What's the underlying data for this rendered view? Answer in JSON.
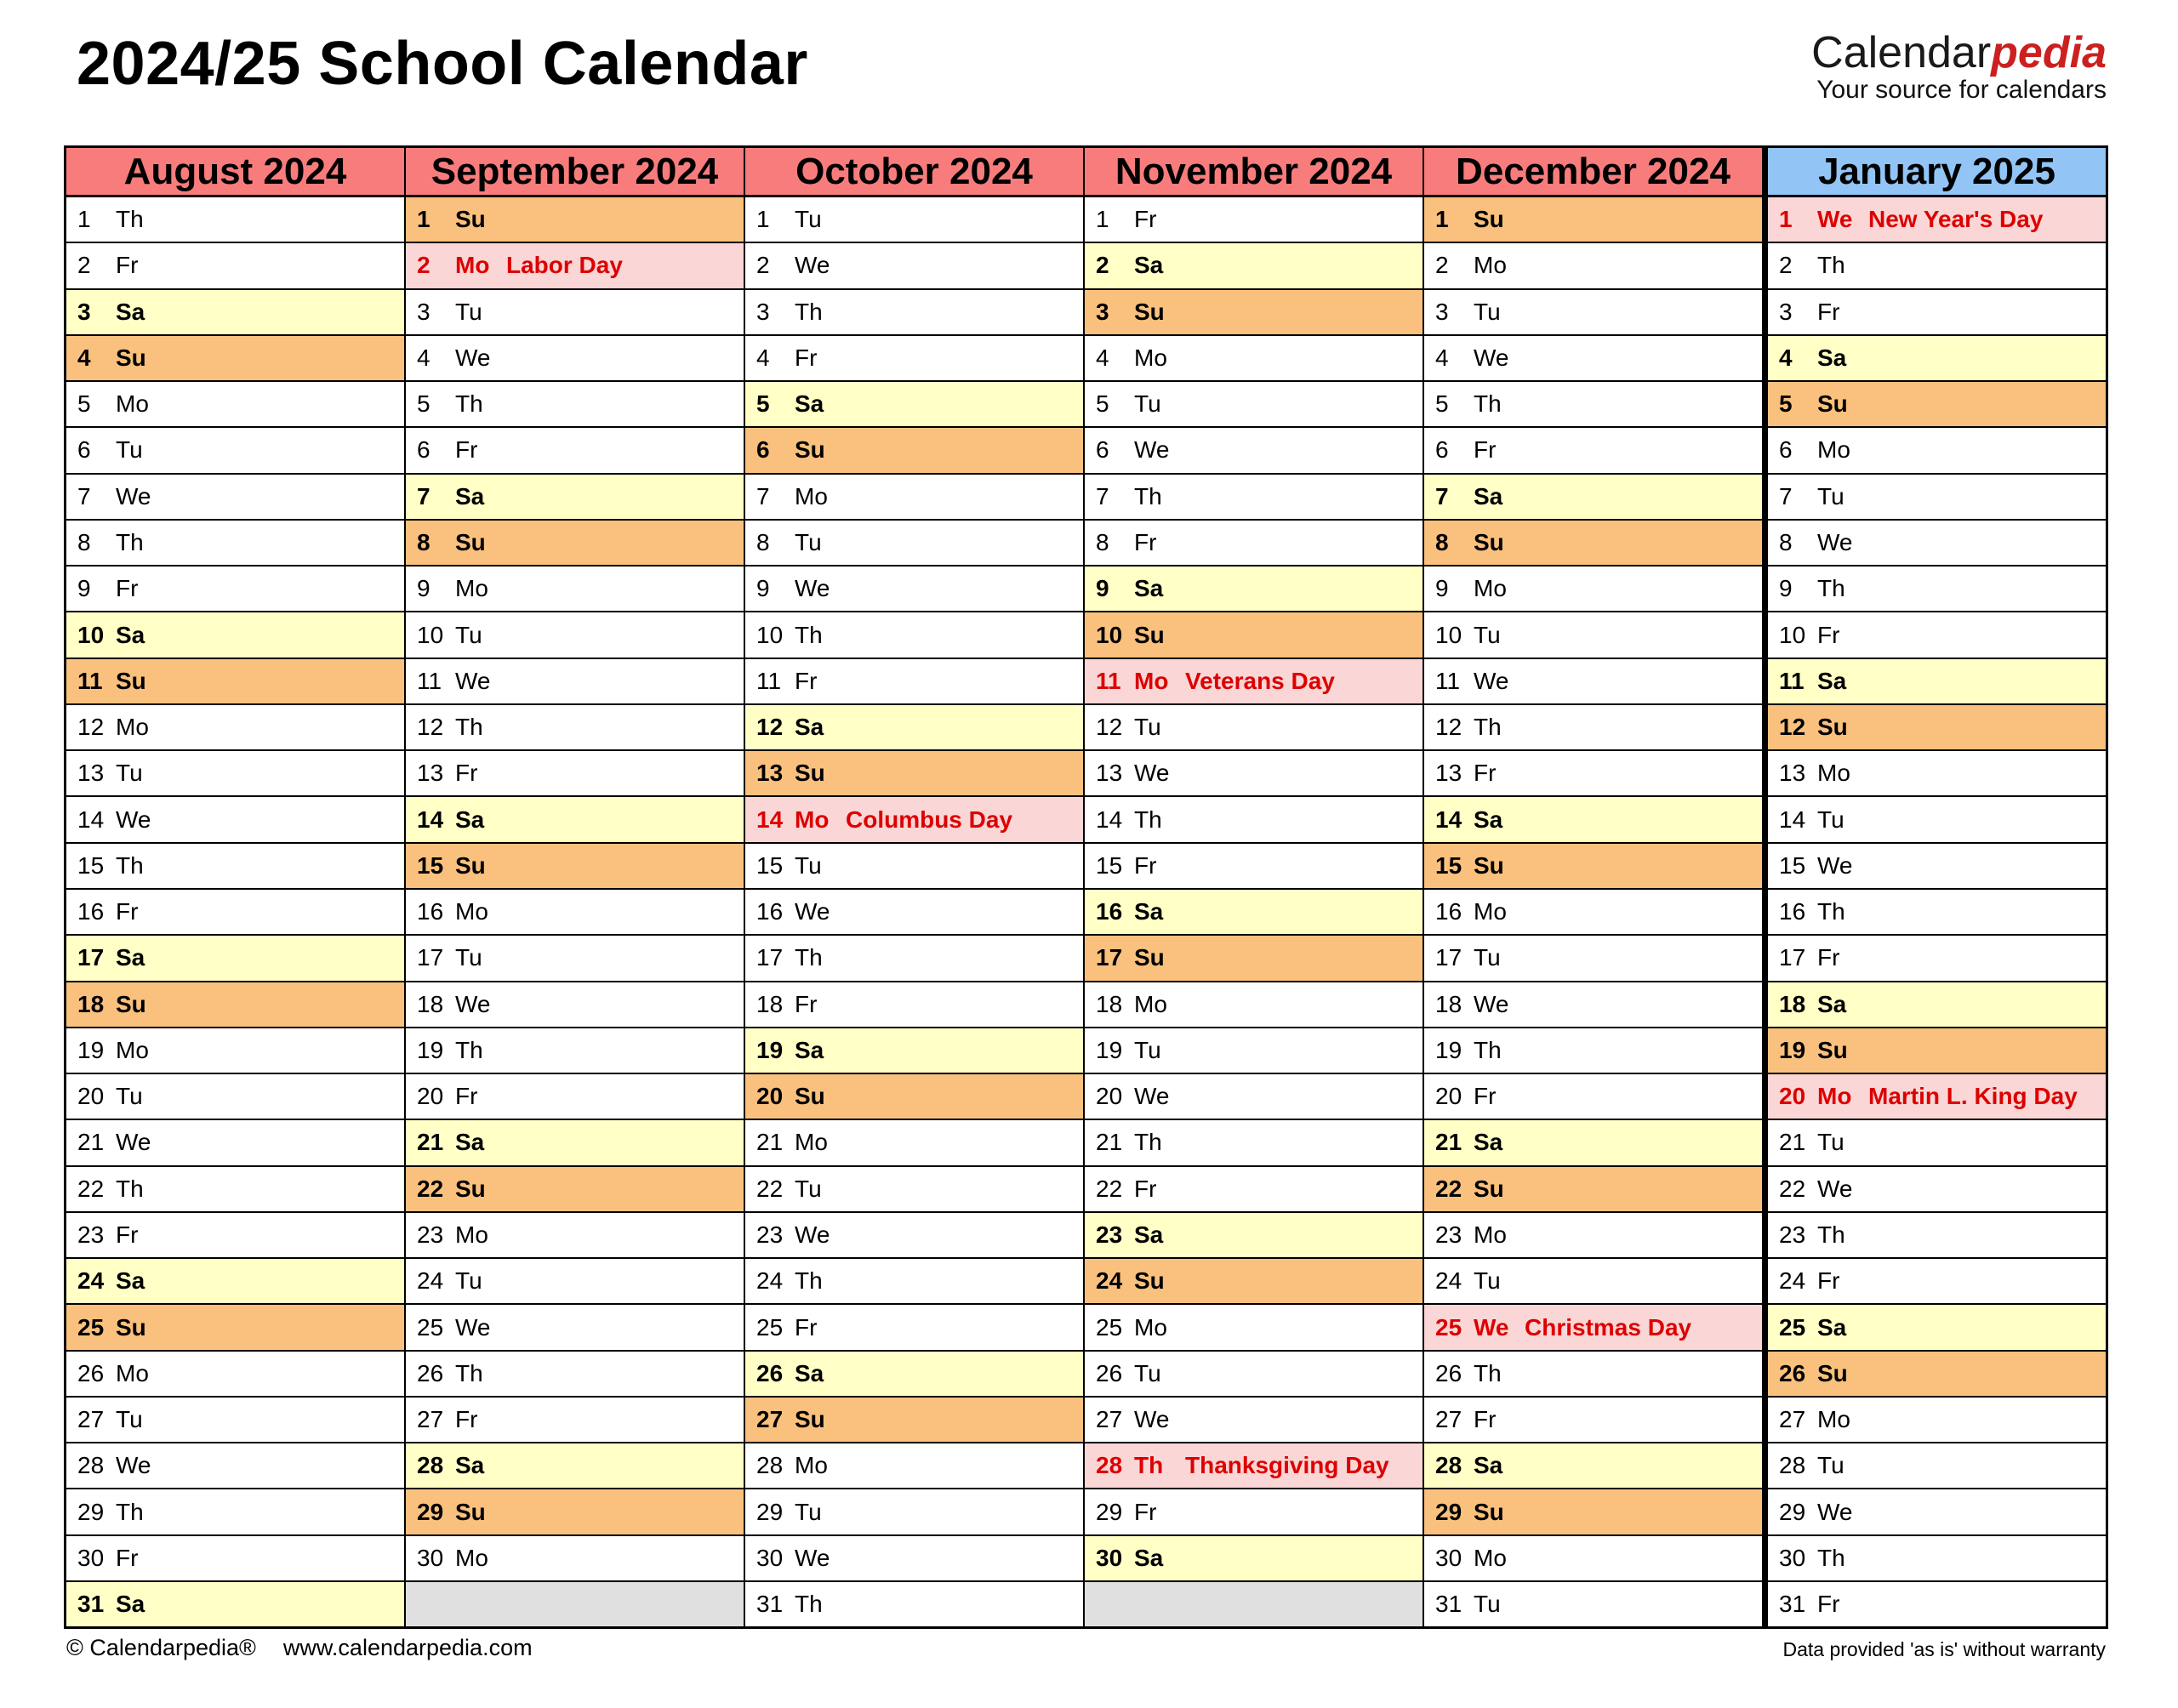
{
  "page": {
    "title": "2024/25 School Calendar",
    "logo": {
      "black": "Calendar",
      "red": "pedia",
      "tagline": "Your source for calendars"
    },
    "footer": {
      "copyright": "© Calendarpedia®",
      "website": "www.calendarpedia.com",
      "disclaimer": "Data provided 'as is' without warranty"
    }
  },
  "colors": {
    "month_header_bg": "#f87c7c",
    "current_month_header_bg": "#92c5f6",
    "saturday_bg": "#ffffc6",
    "sunday_bg": "#fac17e",
    "holiday_bg": "#fad6d6",
    "holiday_text": "#dd0000",
    "empty_cell_bg": "#e0e0e0"
  },
  "calendar": {
    "rows": 31,
    "months": [
      {
        "name": "August 2024",
        "highlight": false,
        "days": [
          {
            "d": 1,
            "w": "Th"
          },
          {
            "d": 2,
            "w": "Fr"
          },
          {
            "d": 3,
            "w": "Sa"
          },
          {
            "d": 4,
            "w": "Su"
          },
          {
            "d": 5,
            "w": "Mo"
          },
          {
            "d": 6,
            "w": "Tu"
          },
          {
            "d": 7,
            "w": "We"
          },
          {
            "d": 8,
            "w": "Th"
          },
          {
            "d": 9,
            "w": "Fr"
          },
          {
            "d": 10,
            "w": "Sa"
          },
          {
            "d": 11,
            "w": "Su"
          },
          {
            "d": 12,
            "w": "Mo"
          },
          {
            "d": 13,
            "w": "Tu"
          },
          {
            "d": 14,
            "w": "We"
          },
          {
            "d": 15,
            "w": "Th"
          },
          {
            "d": 16,
            "w": "Fr"
          },
          {
            "d": 17,
            "w": "Sa"
          },
          {
            "d": 18,
            "w": "Su"
          },
          {
            "d": 19,
            "w": "Mo"
          },
          {
            "d": 20,
            "w": "Tu"
          },
          {
            "d": 21,
            "w": "We"
          },
          {
            "d": 22,
            "w": "Th"
          },
          {
            "d": 23,
            "w": "Fr"
          },
          {
            "d": 24,
            "w": "Sa"
          },
          {
            "d": 25,
            "w": "Su"
          },
          {
            "d": 26,
            "w": "Mo"
          },
          {
            "d": 27,
            "w": "Tu"
          },
          {
            "d": 28,
            "w": "We"
          },
          {
            "d": 29,
            "w": "Th"
          },
          {
            "d": 30,
            "w": "Fr"
          },
          {
            "d": 31,
            "w": "Sa"
          }
        ]
      },
      {
        "name": "September 2024",
        "highlight": false,
        "days": [
          {
            "d": 1,
            "w": "Su"
          },
          {
            "d": 2,
            "w": "Mo",
            "h": "Labor Day"
          },
          {
            "d": 3,
            "w": "Tu"
          },
          {
            "d": 4,
            "w": "We"
          },
          {
            "d": 5,
            "w": "Th"
          },
          {
            "d": 6,
            "w": "Fr"
          },
          {
            "d": 7,
            "w": "Sa"
          },
          {
            "d": 8,
            "w": "Su"
          },
          {
            "d": 9,
            "w": "Mo"
          },
          {
            "d": 10,
            "w": "Tu"
          },
          {
            "d": 11,
            "w": "We"
          },
          {
            "d": 12,
            "w": "Th"
          },
          {
            "d": 13,
            "w": "Fr"
          },
          {
            "d": 14,
            "w": "Sa"
          },
          {
            "d": 15,
            "w": "Su"
          },
          {
            "d": 16,
            "w": "Mo"
          },
          {
            "d": 17,
            "w": "Tu"
          },
          {
            "d": 18,
            "w": "We"
          },
          {
            "d": 19,
            "w": "Th"
          },
          {
            "d": 20,
            "w": "Fr"
          },
          {
            "d": 21,
            "w": "Sa"
          },
          {
            "d": 22,
            "w": "Su"
          },
          {
            "d": 23,
            "w": "Mo"
          },
          {
            "d": 24,
            "w": "Tu"
          },
          {
            "d": 25,
            "w": "We"
          },
          {
            "d": 26,
            "w": "Th"
          },
          {
            "d": 27,
            "w": "Fr"
          },
          {
            "d": 28,
            "w": "Sa"
          },
          {
            "d": 29,
            "w": "Su"
          },
          {
            "d": 30,
            "w": "Mo"
          }
        ]
      },
      {
        "name": "October 2024",
        "highlight": false,
        "days": [
          {
            "d": 1,
            "w": "Tu"
          },
          {
            "d": 2,
            "w": "We"
          },
          {
            "d": 3,
            "w": "Th"
          },
          {
            "d": 4,
            "w": "Fr"
          },
          {
            "d": 5,
            "w": "Sa"
          },
          {
            "d": 6,
            "w": "Su"
          },
          {
            "d": 7,
            "w": "Mo"
          },
          {
            "d": 8,
            "w": "Tu"
          },
          {
            "d": 9,
            "w": "We"
          },
          {
            "d": 10,
            "w": "Th"
          },
          {
            "d": 11,
            "w": "Fr"
          },
          {
            "d": 12,
            "w": "Sa"
          },
          {
            "d": 13,
            "w": "Su"
          },
          {
            "d": 14,
            "w": "Mo",
            "h": "Columbus Day"
          },
          {
            "d": 15,
            "w": "Tu"
          },
          {
            "d": 16,
            "w": "We"
          },
          {
            "d": 17,
            "w": "Th"
          },
          {
            "d": 18,
            "w": "Fr"
          },
          {
            "d": 19,
            "w": "Sa"
          },
          {
            "d": 20,
            "w": "Su"
          },
          {
            "d": 21,
            "w": "Mo"
          },
          {
            "d": 22,
            "w": "Tu"
          },
          {
            "d": 23,
            "w": "We"
          },
          {
            "d": 24,
            "w": "Th"
          },
          {
            "d": 25,
            "w": "Fr"
          },
          {
            "d": 26,
            "w": "Sa"
          },
          {
            "d": 27,
            "w": "Su"
          },
          {
            "d": 28,
            "w": "Mo"
          },
          {
            "d": 29,
            "w": "Tu"
          },
          {
            "d": 30,
            "w": "We"
          },
          {
            "d": 31,
            "w": "Th"
          }
        ]
      },
      {
        "name": "November 2024",
        "highlight": false,
        "days": [
          {
            "d": 1,
            "w": "Fr"
          },
          {
            "d": 2,
            "w": "Sa"
          },
          {
            "d": 3,
            "w": "Su"
          },
          {
            "d": 4,
            "w": "Mo"
          },
          {
            "d": 5,
            "w": "Tu"
          },
          {
            "d": 6,
            "w": "We"
          },
          {
            "d": 7,
            "w": "Th"
          },
          {
            "d": 8,
            "w": "Fr"
          },
          {
            "d": 9,
            "w": "Sa"
          },
          {
            "d": 10,
            "w": "Su"
          },
          {
            "d": 11,
            "w": "Mo",
            "h": "Veterans Day"
          },
          {
            "d": 12,
            "w": "Tu"
          },
          {
            "d": 13,
            "w": "We"
          },
          {
            "d": 14,
            "w": "Th"
          },
          {
            "d": 15,
            "w": "Fr"
          },
          {
            "d": 16,
            "w": "Sa"
          },
          {
            "d": 17,
            "w": "Su"
          },
          {
            "d": 18,
            "w": "Mo"
          },
          {
            "d": 19,
            "w": "Tu"
          },
          {
            "d": 20,
            "w": "We"
          },
          {
            "d": 21,
            "w": "Th"
          },
          {
            "d": 22,
            "w": "Fr"
          },
          {
            "d": 23,
            "w": "Sa"
          },
          {
            "d": 24,
            "w": "Su"
          },
          {
            "d": 25,
            "w": "Mo"
          },
          {
            "d": 26,
            "w": "Tu"
          },
          {
            "d": 27,
            "w": "We"
          },
          {
            "d": 28,
            "w": "Th",
            "h": "Thanksgiving Day"
          },
          {
            "d": 29,
            "w": "Fr"
          },
          {
            "d": 30,
            "w": "Sa"
          }
        ]
      },
      {
        "name": "December 2024",
        "highlight": false,
        "days": [
          {
            "d": 1,
            "w": "Su"
          },
          {
            "d": 2,
            "w": "Mo"
          },
          {
            "d": 3,
            "w": "Tu"
          },
          {
            "d": 4,
            "w": "We"
          },
          {
            "d": 5,
            "w": "Th"
          },
          {
            "d": 6,
            "w": "Fr"
          },
          {
            "d": 7,
            "w": "Sa"
          },
          {
            "d": 8,
            "w": "Su"
          },
          {
            "d": 9,
            "w": "Mo"
          },
          {
            "d": 10,
            "w": "Tu"
          },
          {
            "d": 11,
            "w": "We"
          },
          {
            "d": 12,
            "w": "Th"
          },
          {
            "d": 13,
            "w": "Fr"
          },
          {
            "d": 14,
            "w": "Sa"
          },
          {
            "d": 15,
            "w": "Su"
          },
          {
            "d": 16,
            "w": "Mo"
          },
          {
            "d": 17,
            "w": "Tu"
          },
          {
            "d": 18,
            "w": "We"
          },
          {
            "d": 19,
            "w": "Th"
          },
          {
            "d": 20,
            "w": "Fr"
          },
          {
            "d": 21,
            "w": "Sa"
          },
          {
            "d": 22,
            "w": "Su"
          },
          {
            "d": 23,
            "w": "Mo"
          },
          {
            "d": 24,
            "w": "Tu"
          },
          {
            "d": 25,
            "w": "We",
            "h": "Christmas Day"
          },
          {
            "d": 26,
            "w": "Th"
          },
          {
            "d": 27,
            "w": "Fr"
          },
          {
            "d": 28,
            "w": "Sa"
          },
          {
            "d": 29,
            "w": "Su"
          },
          {
            "d": 30,
            "w": "Mo"
          },
          {
            "d": 31,
            "w": "Tu"
          }
        ]
      },
      {
        "name": "January 2025",
        "highlight": true,
        "days": [
          {
            "d": 1,
            "w": "We",
            "h": "New Year's Day"
          },
          {
            "d": 2,
            "w": "Th"
          },
          {
            "d": 3,
            "w": "Fr"
          },
          {
            "d": 4,
            "w": "Sa"
          },
          {
            "d": 5,
            "w": "Su"
          },
          {
            "d": 6,
            "w": "Mo"
          },
          {
            "d": 7,
            "w": "Tu"
          },
          {
            "d": 8,
            "w": "We"
          },
          {
            "d": 9,
            "w": "Th"
          },
          {
            "d": 10,
            "w": "Fr"
          },
          {
            "d": 11,
            "w": "Sa"
          },
          {
            "d": 12,
            "w": "Su"
          },
          {
            "d": 13,
            "w": "Mo"
          },
          {
            "d": 14,
            "w": "Tu"
          },
          {
            "d": 15,
            "w": "We"
          },
          {
            "d": 16,
            "w": "Th"
          },
          {
            "d": 17,
            "w": "Fr"
          },
          {
            "d": 18,
            "w": "Sa"
          },
          {
            "d": 19,
            "w": "Su"
          },
          {
            "d": 20,
            "w": "Mo",
            "h": "Martin L. King Day"
          },
          {
            "d": 21,
            "w": "Tu"
          },
          {
            "d": 22,
            "w": "We"
          },
          {
            "d": 23,
            "w": "Th"
          },
          {
            "d": 24,
            "w": "Fr"
          },
          {
            "d": 25,
            "w": "Sa"
          },
          {
            "d": 26,
            "w": "Su"
          },
          {
            "d": 27,
            "w": "Mo"
          },
          {
            "d": 28,
            "w": "Tu"
          },
          {
            "d": 29,
            "w": "We"
          },
          {
            "d": 30,
            "w": "Th"
          },
          {
            "d": 31,
            "w": "Fr"
          }
        ]
      }
    ]
  }
}
